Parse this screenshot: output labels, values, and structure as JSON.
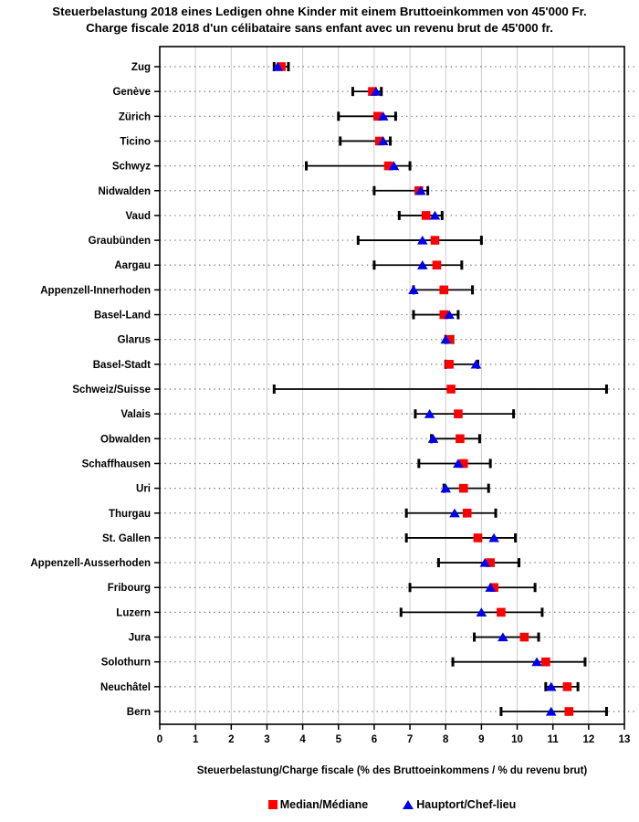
{
  "title": {
    "line1": "Steuerbelastung 2018 eines Ledigen ohne Kinder mit einem Bruttoeinkommen von 45'000 Fr.",
    "line2": "Charge fiscale 2018 d'un célibataire sans enfant avec un revenu brut de 45'000 fr."
  },
  "axis": {
    "xlabel": "Steuerbelastung/Charge fiscale (% des Bruttoeinkommens / % du revenu brut)"
  },
  "legend": {
    "median_label": "Median/Médiane",
    "hauptort_label": "Hauptort/Chef-lieu",
    "median_marker": "red-square",
    "hauptort_marker": "blue-triangle"
  },
  "colors": {
    "median": "#ff0000",
    "hauptort": "#0000ee",
    "range": "#000000",
    "grid_vertical": "#cccccc",
    "grid_dotted": "#777777",
    "text": "#000000"
  },
  "chart_data": {
    "type": "scatter",
    "variant": "horizontal-range-dot-plot",
    "title": "Steuerbelastung 2018 eines Ledigen ohne Kinder mit einem Bruttoeinkommen von 45'000 Fr. / Charge fiscale 2018 d'un célibataire sans enfant avec un revenu brut de 45'000 fr.",
    "xlabel": "Steuerbelastung/Charge fiscale (% des Bruttoeinkommens / % du revenu brut)",
    "xlim": [
      0,
      13
    ],
    "xticks": [
      0,
      1,
      2,
      3,
      4,
      5,
      6,
      7,
      8,
      9,
      10,
      11,
      12,
      13
    ],
    "grid": "vertical solid gridlines at integers, horizontal dotted line per category",
    "legend_position": "bottom",
    "series_legend": [
      {
        "name": "Median/Médiane",
        "marker": "red-square"
      },
      {
        "name": "Hauptort/Chef-lieu",
        "marker": "blue-triangle"
      },
      {
        "name": "min-max range",
        "marker": "black-line-with-end-caps"
      }
    ],
    "rows": [
      {
        "canton": "Zug",
        "min": 3.2,
        "max": 3.6,
        "median": 3.4,
        "hauptort": 3.3
      },
      {
        "canton": "Genève",
        "min": 5.4,
        "max": 6.2,
        "median": 5.95,
        "hauptort": 6.05
      },
      {
        "canton": "Zürich",
        "min": 5.0,
        "max": 6.6,
        "median": 6.1,
        "hauptort": 6.25
      },
      {
        "canton": "Ticino",
        "min": 5.05,
        "max": 6.45,
        "median": 6.15,
        "hauptort": 6.25
      },
      {
        "canton": "Schwyz",
        "min": 4.1,
        "max": 7.0,
        "median": 6.4,
        "hauptort": 6.55
      },
      {
        "canton": "Nidwalden",
        "min": 6.0,
        "max": 7.5,
        "median": 7.25,
        "hauptort": 7.3
      },
      {
        "canton": "Vaud",
        "min": 6.7,
        "max": 7.9,
        "median": 7.45,
        "hauptort": 7.7
      },
      {
        "canton": "Graubünden",
        "min": 5.55,
        "max": 9.0,
        "median": 7.7,
        "hauptort": 7.35
      },
      {
        "canton": "Aargau",
        "min": 6.0,
        "max": 8.45,
        "median": 7.75,
        "hauptort": 7.35
      },
      {
        "canton": "Appenzell-Innerhoden",
        "min": 7.1,
        "max": 8.75,
        "median": 7.95,
        "hauptort": 7.1
      },
      {
        "canton": "Basel-Land",
        "min": 7.1,
        "max": 8.35,
        "median": 7.95,
        "hauptort": 8.1
      },
      {
        "canton": "Glarus",
        "min": 8.0,
        "max": 8.2,
        "median": 8.1,
        "hauptort": 8.0
      },
      {
        "canton": "Basel-Stadt",
        "min": 8.0,
        "max": 8.9,
        "median": 8.1,
        "hauptort": 8.85
      },
      {
        "canton": "Schweiz/Suisse",
        "min": 3.2,
        "max": 12.5,
        "median": 8.15,
        "hauptort": null
      },
      {
        "canton": "Valais",
        "min": 7.15,
        "max": 9.9,
        "median": 8.35,
        "hauptort": 7.55
      },
      {
        "canton": "Obwalden",
        "min": 7.6,
        "max": 8.95,
        "median": 8.4,
        "hauptort": 7.65
      },
      {
        "canton": "Schaffhausen",
        "min": 7.25,
        "max": 9.25,
        "median": 8.5,
        "hauptort": 8.35
      },
      {
        "canton": "Uri",
        "min": 7.95,
        "max": 9.2,
        "median": 8.5,
        "hauptort": 8.0
      },
      {
        "canton": "Thurgau",
        "min": 6.9,
        "max": 9.4,
        "median": 8.6,
        "hauptort": 8.25
      },
      {
        "canton": "St. Gallen",
        "min": 6.9,
        "max": 9.95,
        "median": 8.9,
        "hauptort": 9.35
      },
      {
        "canton": "Appenzell-Ausserhoden",
        "min": 7.8,
        "max": 10.05,
        "median": 9.25,
        "hauptort": 9.1
      },
      {
        "canton": "Fribourg",
        "min": 7.0,
        "max": 10.5,
        "median": 9.35,
        "hauptort": 9.25
      },
      {
        "canton": "Luzern",
        "min": 6.75,
        "max": 10.7,
        "median": 9.55,
        "hauptort": 9.0
      },
      {
        "canton": "Jura",
        "min": 8.8,
        "max": 10.6,
        "median": 10.2,
        "hauptort": 9.6
      },
      {
        "canton": "Solothurn",
        "min": 8.2,
        "max": 11.9,
        "median": 10.8,
        "hauptort": 10.55
      },
      {
        "canton": "Neuchâtel",
        "min": 10.8,
        "max": 11.7,
        "median": 11.4,
        "hauptort": 10.95
      },
      {
        "canton": "Bern",
        "min": 9.55,
        "max": 12.5,
        "median": 11.45,
        "hauptort": 10.95
      }
    ]
  }
}
